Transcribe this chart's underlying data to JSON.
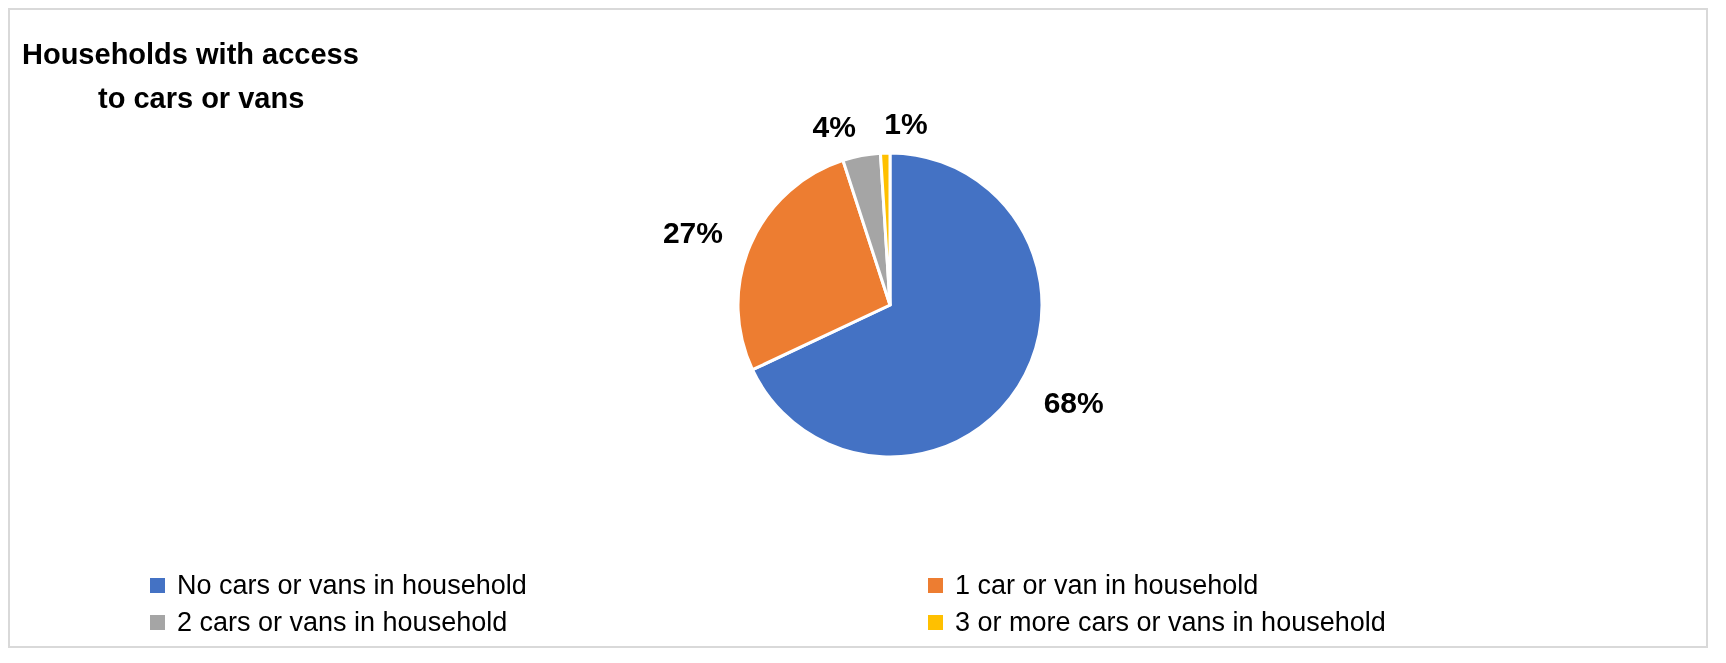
{
  "chart_data": {
    "type": "pie",
    "title": "Households with access\nto cars or vans",
    "categories": [
      "No cars or vans in household",
      "1 car or van in household",
      "2 cars or vans in household",
      "3 or more cars or vans in household"
    ],
    "values": [
      68,
      27,
      4,
      1
    ],
    "colors": [
      "#4472c4",
      "#ed7d31",
      "#a5a5a5",
      "#ffc000"
    ],
    "value_labels": [
      "68%",
      "27%",
      "4%",
      "1%"
    ],
    "legend": "bottom"
  }
}
